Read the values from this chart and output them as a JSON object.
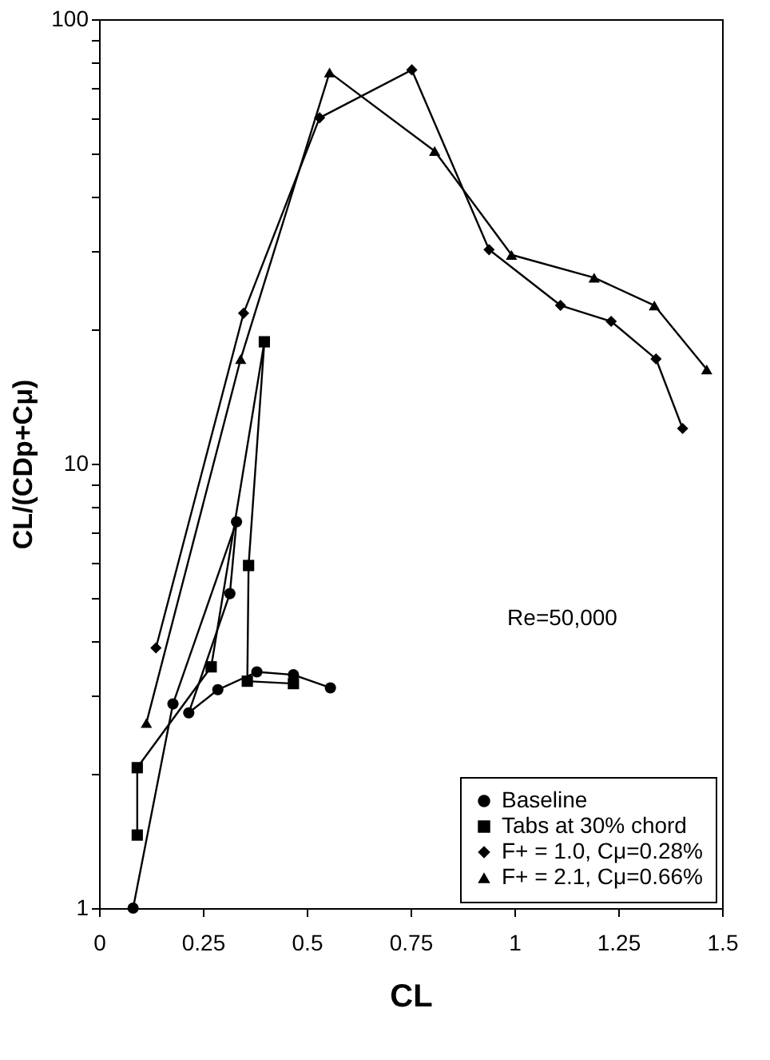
{
  "chart_data": {
    "type": "line",
    "xlabel": "CL",
    "ylabel": "CL/(CDp+Cμ)",
    "log": "y",
    "xlim": [
      0,
      1.5
    ],
    "xticks": [
      0,
      0.25,
      0.5,
      0.75,
      1,
      1.25,
      1.5
    ],
    "ylim": [
      1,
      100
    ],
    "yticks": [
      1,
      {
        "value": 2,
        "label": null
      },
      {
        "value": 3,
        "label": null
      },
      {
        "value": 4,
        "label": null
      },
      {
        "value": 5,
        "label": null
      },
      {
        "value": 6,
        "label": null
      },
      {
        "value": 7,
        "label": null
      },
      {
        "value": 8,
        "label": null
      },
      {
        "value": 9,
        "label": null
      },
      10,
      {
        "value": 20,
        "label": null
      },
      {
        "value": 30,
        "label": null
      },
      {
        "value": 40,
        "label": null
      },
      {
        "value": 50,
        "label": null
      },
      {
        "value": 60,
        "label": null
      },
      {
        "value": 70,
        "label": null
      },
      {
        "value": 80,
        "label": null
      },
      {
        "value": 90,
        "label": null
      },
      100
    ],
    "grid": false,
    "legend": "bottom right",
    "line_style": "solid",
    "annotations": [
      "Re=50,000"
    ],
    "series": [
      {
        "name": "Baseline",
        "color": "#000000",
        "marker": "circle",
        "x": [
          0.082,
          0.178,
          0.331,
          0.315,
          0.216,
          0.286,
          0.38,
          0.468,
          0.557
        ],
        "values": [
          1.0,
          2.88,
          7.4,
          5.1,
          2.75,
          3.1,
          3.4,
          3.35,
          3.13
        ]
      },
      {
        "name": "Tabs at 30% chord",
        "color": "#000000",
        "marker": "square",
        "x": [
          0.092,
          0.092,
          0.27,
          0.398,
          0.36,
          0.357,
          0.468
        ],
        "values": [
          1.46,
          2.07,
          3.49,
          18.8,
          5.9,
          3.24,
          3.2
        ]
      },
      {
        "name": "F+ = 1.0, Cμ=0.28%",
        "color": "#000000",
        "marker": "diamond",
        "x": [
          0.137,
          0.348,
          0.531,
          0.753,
          0.939,
          1.111,
          1.233,
          1.341,
          1.405
        ],
        "values": [
          3.85,
          21.8,
          60,
          76.9,
          30.3,
          22.7,
          20.9,
          17.2,
          12.0
        ]
      },
      {
        "name": "F+ = 2.1, Cμ=0.66%",
        "color": "#000000",
        "marker": "triangle",
        "x": [
          0.114,
          0.341,
          0.555,
          0.808,
          0.993,
          1.192,
          1.337,
          1.463
        ],
        "values": [
          2.61,
          17.2,
          75.9,
          50.5,
          29.5,
          26.2,
          22.7,
          16.3
        ]
      }
    ]
  }
}
